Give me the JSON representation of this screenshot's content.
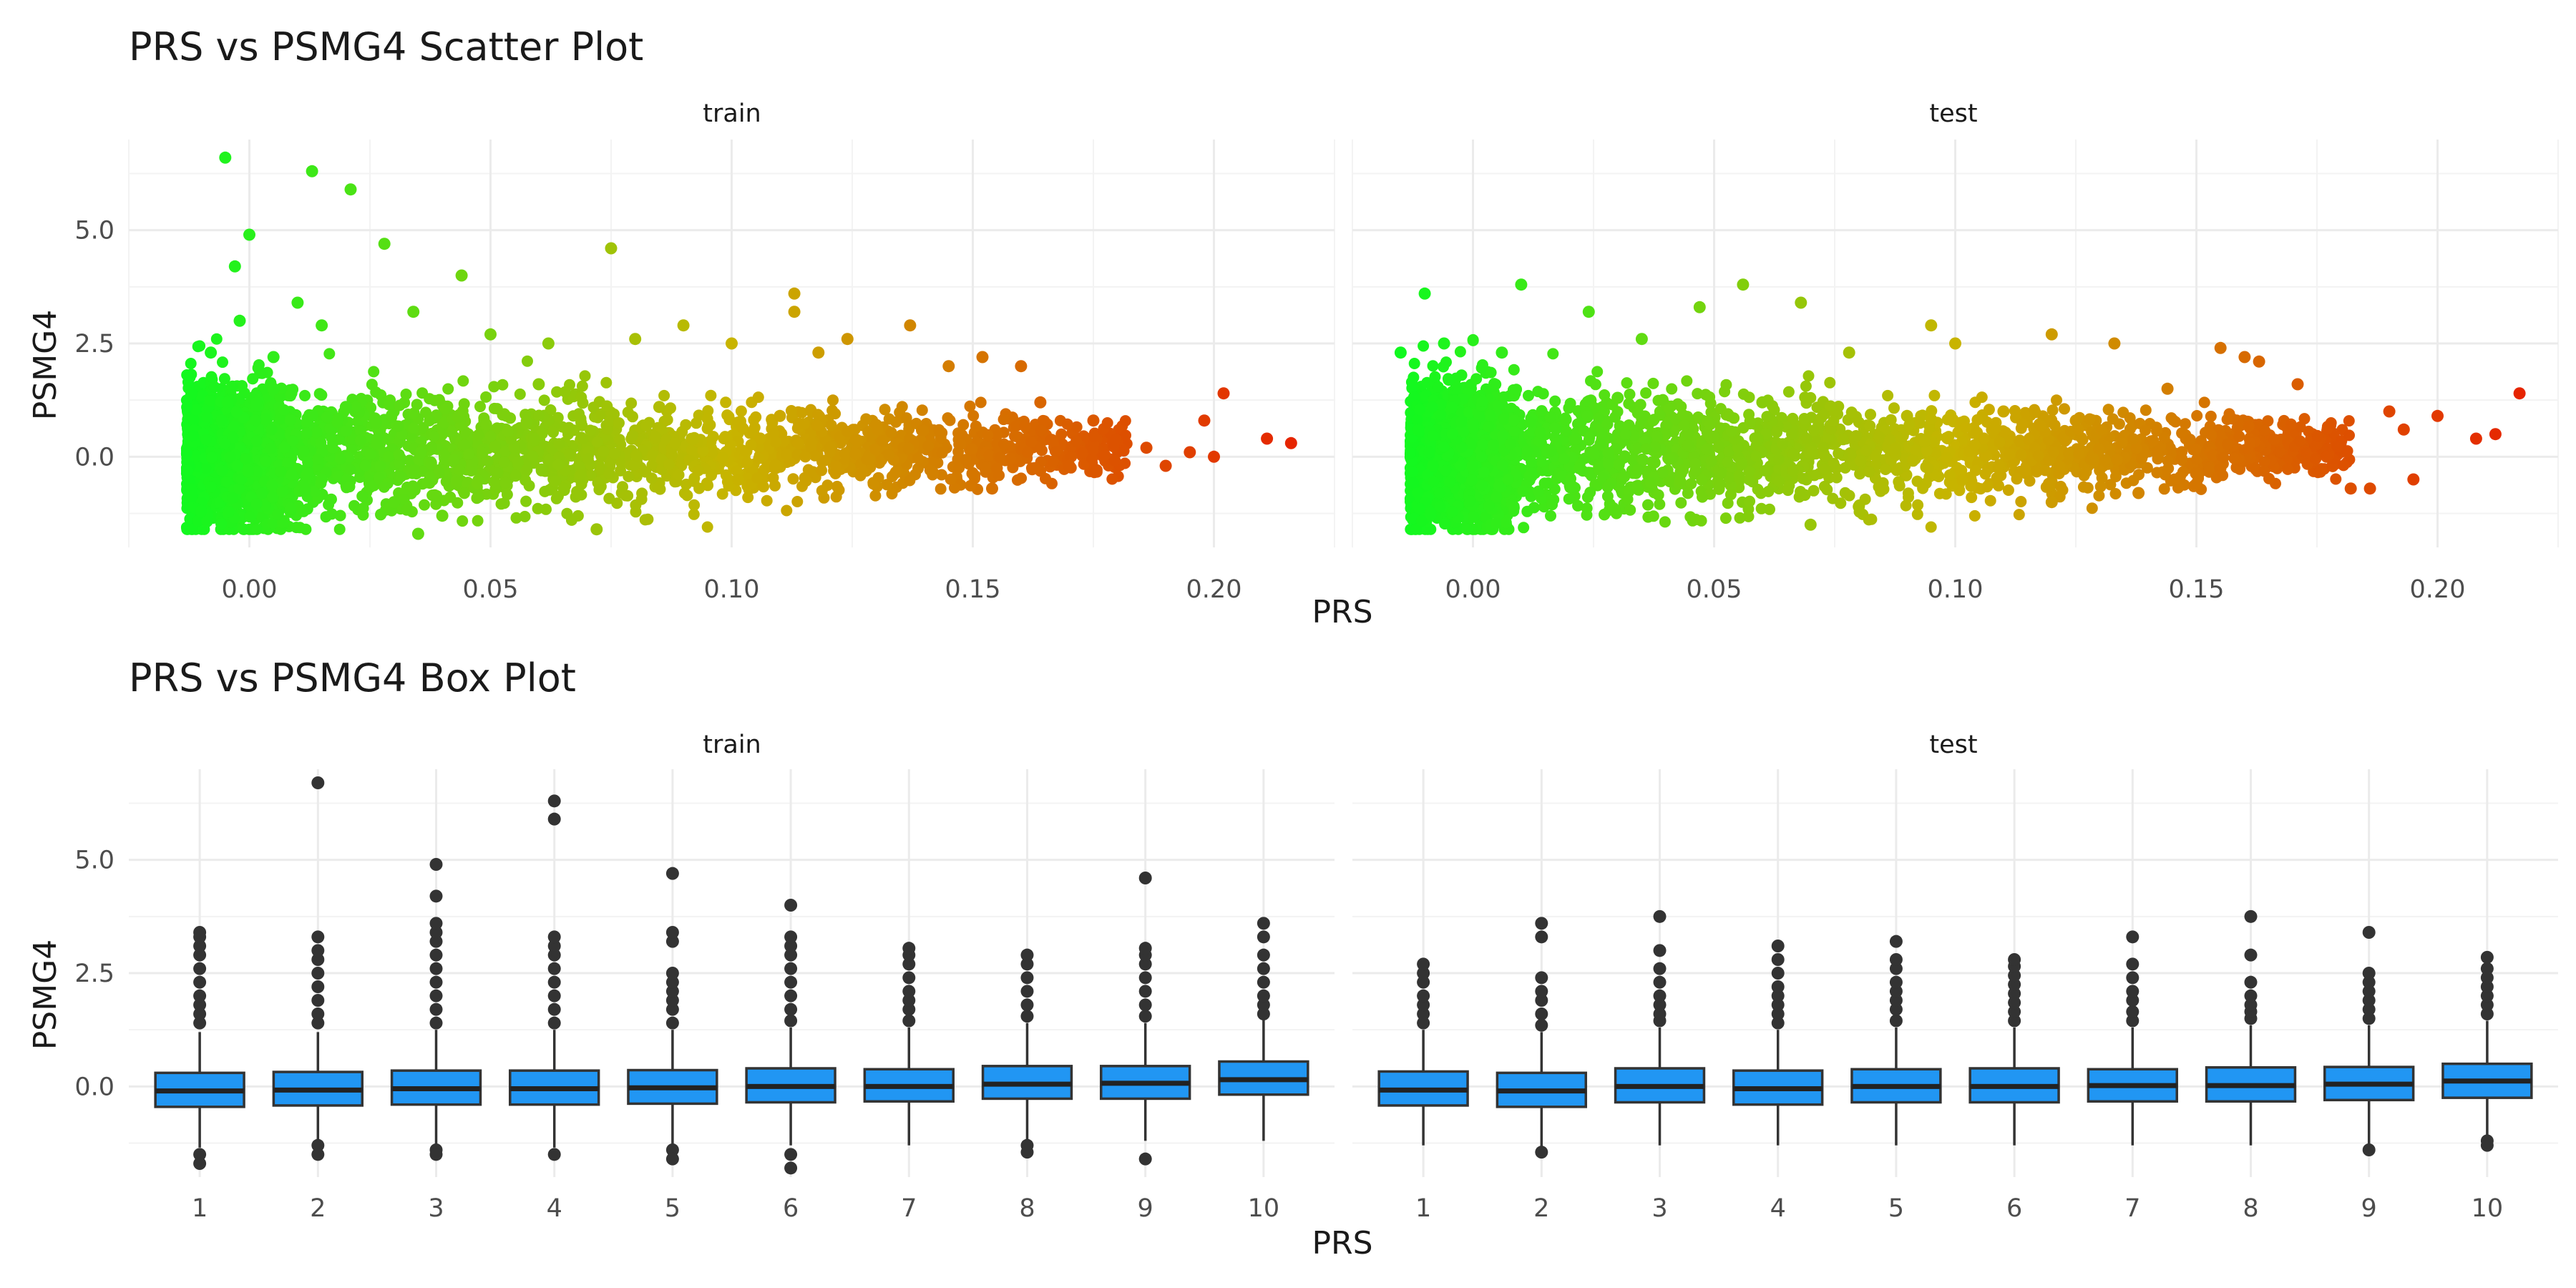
{
  "chart_data": [
    {
      "type": "scatter",
      "title": "PRS vs PSMG4 Scatter Plot",
      "xlabel": "PRS",
      "ylabel": "PSMG4",
      "xlim": [
        -0.025,
        0.225
      ],
      "ylim": [
        -2.0,
        7.0
      ],
      "xticks": [
        0.0,
        0.05,
        0.1,
        0.15,
        0.2
      ],
      "xtick_labels": [
        "0.00",
        "0.05",
        "0.10",
        "0.15",
        "0.20"
      ],
      "yticks": [
        0.0,
        2.5,
        5.0
      ],
      "ytick_labels": [
        "0.0",
        "2.5",
        "5.0"
      ],
      "color_scale": {
        "low": "#00ff22",
        "mid": "#c8b400",
        "high": "#e81a00",
        "variable": "PRS"
      },
      "grid": true,
      "facets": [
        {
          "name": "train",
          "points": [
            [
              -0.012,
              1.4
            ],
            [
              -0.01,
              -1.2
            ],
            [
              -0.008,
              2.3
            ],
            [
              -0.005,
              6.6
            ],
            [
              -0.003,
              4.2
            ],
            [
              0.0,
              4.9
            ],
            [
              -0.002,
              3.0
            ],
            [
              0.005,
              2.2
            ],
            [
              0.01,
              3.4
            ],
            [
              0.015,
              2.9
            ],
            [
              0.013,
              6.3
            ],
            [
              0.021,
              5.9
            ],
            [
              0.028,
              4.7
            ],
            [
              0.034,
              3.2
            ],
            [
              0.044,
              4.0
            ],
            [
              0.05,
              2.7
            ],
            [
              0.035,
              -1.7
            ],
            [
              0.04,
              -1.3
            ],
            [
              0.062,
              2.5
            ],
            [
              0.072,
              -1.6
            ],
            [
              0.075,
              4.6
            ],
            [
              0.08,
              2.6
            ],
            [
              0.09,
              2.9
            ],
            [
              0.1,
              2.5
            ],
            [
              0.113,
              3.6
            ],
            [
              0.113,
              3.2
            ],
            [
              0.118,
              2.3
            ],
            [
              0.124,
              2.6
            ],
            [
              0.137,
              2.9
            ],
            [
              0.145,
              2.0
            ],
            [
              0.152,
              2.2
            ],
            [
              0.16,
              2.0
            ],
            [
              0.154,
              -0.7
            ],
            [
              0.164,
              1.2
            ],
            [
              0.17,
              -0.2
            ],
            [
              0.175,
              0.8
            ],
            [
              0.186,
              0.2
            ],
            [
              0.19,
              -0.2
            ],
            [
              0.195,
              0.1
            ],
            [
              0.198,
              0.8
            ],
            [
              0.2,
              0.0
            ],
            [
              0.202,
              1.4
            ],
            [
              0.211,
              0.4
            ],
            [
              0.216,
              0.3
            ],
            [
              0.005,
              1.5
            ],
            [
              0.02,
              1.1
            ],
            [
              0.03,
              -1.0
            ],
            [
              0.06,
              1.6
            ],
            [
              0.085,
              1.1
            ],
            [
              0.11,
              0.9
            ],
            [
              0.13,
              0.7
            ]
          ]
        },
        {
          "name": "test",
          "points": [
            [
              -0.015,
              2.3
            ],
            [
              -0.01,
              3.6
            ],
            [
              -0.006,
              2.5
            ],
            [
              0.006,
              2.3
            ],
            [
              0.01,
              3.8
            ],
            [
              0.024,
              3.2
            ],
            [
              0.035,
              2.6
            ],
            [
              0.047,
              3.3
            ],
            [
              0.056,
              3.8
            ],
            [
              0.068,
              3.4
            ],
            [
              0.078,
              2.3
            ],
            [
              0.095,
              2.9
            ],
            [
              0.1,
              2.5
            ],
            [
              0.12,
              2.7
            ],
            [
              0.133,
              2.5
            ],
            [
              0.144,
              1.5
            ],
            [
              0.155,
              2.4
            ],
            [
              0.16,
              2.2
            ],
            [
              0.163,
              2.1
            ],
            [
              0.171,
              1.6
            ],
            [
              0.177,
              0.0
            ],
            [
              0.182,
              -0.7
            ],
            [
              0.186,
              -0.7
            ],
            [
              0.19,
              1.0
            ],
            [
              0.193,
              0.6
            ],
            [
              0.195,
              -0.5
            ],
            [
              0.2,
              0.9
            ],
            [
              0.208,
              0.4
            ],
            [
              0.212,
              0.5
            ],
            [
              0.217,
              1.4
            ],
            [
              0.07,
              -1.5
            ],
            [
              0.08,
              -1.1
            ],
            [
              0.12,
              -1.0
            ],
            [
              0.138,
              -0.8
            ],
            [
              0.15,
              -0.6
            ],
            [
              -0.005,
              1.7
            ],
            [
              0.03,
              1.3
            ],
            [
              0.06,
              1.2
            ],
            [
              0.09,
              0.9
            ],
            [
              0.11,
              1.0
            ],
            [
              0.125,
              0.8
            ]
          ]
        }
      ]
    },
    {
      "type": "box",
      "title": "PRS vs PSMG4 Box Plot",
      "xlabel": "PRS",
      "ylabel": "PSMG4",
      "ylim": [
        -2.0,
        7.0
      ],
      "yticks": [
        0.0,
        2.5,
        5.0
      ],
      "ytick_labels": [
        "0.0",
        "2.5",
        "5.0"
      ],
      "categories": [
        "1",
        "2",
        "3",
        "4",
        "5",
        "6",
        "7",
        "8",
        "9",
        "10"
      ],
      "box_color": "#2196f3",
      "grid": true,
      "facets": [
        {
          "name": "train",
          "boxes": [
            {
              "q1": -0.45,
              "median": -0.1,
              "q3": 0.3,
              "lower": -1.35,
              "upper": 1.2,
              "outliers": [
                1.4,
                1.6,
                1.8,
                2.0,
                2.3,
                2.6,
                2.9,
                3.1,
                3.3,
                3.4,
                -1.5,
                -1.7
              ]
            },
            {
              "q1": -0.42,
              "median": -0.08,
              "q3": 0.32,
              "lower": -1.3,
              "upper": 1.2,
              "outliers": [
                1.4,
                1.6,
                1.9,
                2.2,
                2.5,
                2.8,
                3.0,
                3.3,
                6.7,
                -1.3,
                -1.5
              ]
            },
            {
              "q1": -0.4,
              "median": -0.05,
              "q3": 0.35,
              "lower": -1.35,
              "upper": 1.25,
              "outliers": [
                1.4,
                1.7,
                2.0,
                2.3,
                2.6,
                2.9,
                3.2,
                3.4,
                3.6,
                4.2,
                4.9,
                -1.4,
                -1.5
              ]
            },
            {
              "q1": -0.4,
              "median": -0.05,
              "q3": 0.35,
              "lower": -1.35,
              "upper": 1.25,
              "outliers": [
                1.4,
                1.7,
                2.0,
                2.3,
                2.6,
                2.9,
                3.1,
                3.3,
                5.9,
                6.3,
                -1.5
              ]
            },
            {
              "q1": -0.38,
              "median": -0.03,
              "q3": 0.36,
              "lower": -1.3,
              "upper": 1.25,
              "outliers": [
                1.4,
                1.7,
                1.9,
                2.1,
                2.3,
                2.5,
                3.2,
                3.4,
                4.7,
                -1.4,
                -1.6
              ]
            },
            {
              "q1": -0.35,
              "median": 0.0,
              "q3": 0.4,
              "lower": -1.3,
              "upper": 1.3,
              "outliers": [
                1.45,
                1.7,
                2.0,
                2.3,
                2.6,
                2.9,
                3.1,
                3.3,
                4.0,
                -1.5,
                -1.8
              ]
            },
            {
              "q1": -0.33,
              "median": 0.0,
              "q3": 0.38,
              "lower": -1.3,
              "upper": 1.3,
              "outliers": [
                1.45,
                1.7,
                1.9,
                2.1,
                2.4,
                2.7,
                2.9,
                3.05
              ]
            },
            {
              "q1": -0.27,
              "median": 0.05,
              "q3": 0.45,
              "lower": -1.2,
              "upper": 1.4,
              "outliers": [
                1.55,
                1.8,
                2.1,
                2.4,
                2.7,
                2.9,
                -1.3,
                -1.45
              ]
            },
            {
              "q1": -0.27,
              "median": 0.07,
              "q3": 0.45,
              "lower": -1.2,
              "upper": 1.4,
              "outliers": [
                1.55,
                1.8,
                2.1,
                2.4,
                2.7,
                2.9,
                3.05,
                4.6,
                -1.6
              ]
            },
            {
              "q1": -0.18,
              "median": 0.15,
              "q3": 0.55,
              "lower": -1.2,
              "upper": 1.5,
              "outliers": [
                1.6,
                1.8,
                2.0,
                2.3,
                2.6,
                2.9,
                3.3,
                3.6
              ]
            }
          ]
        },
        {
          "name": "test",
          "boxes": [
            {
              "q1": -0.42,
              "median": -0.08,
              "q3": 0.33,
              "lower": -1.3,
              "upper": 1.25,
              "outliers": [
                1.4,
                1.6,
                1.8,
                2.0,
                2.3,
                2.5,
                2.7
              ]
            },
            {
              "q1": -0.45,
              "median": -0.1,
              "q3": 0.3,
              "lower": -1.35,
              "upper": 1.2,
              "outliers": [
                1.35,
                1.6,
                1.9,
                2.1,
                2.4,
                3.3,
                3.6,
                -1.45
              ]
            },
            {
              "q1": -0.35,
              "median": 0.0,
              "q3": 0.4,
              "lower": -1.3,
              "upper": 1.3,
              "outliers": [
                1.45,
                1.6,
                1.8,
                2.0,
                2.3,
                2.6,
                3.0,
                3.75
              ]
            },
            {
              "q1": -0.4,
              "median": -0.05,
              "q3": 0.35,
              "lower": -1.3,
              "upper": 1.25,
              "outliers": [
                1.4,
                1.6,
                1.8,
                2.0,
                2.2,
                2.5,
                2.8,
                3.1
              ]
            },
            {
              "q1": -0.35,
              "median": 0.0,
              "q3": 0.38,
              "lower": -1.3,
              "upper": 1.3,
              "outliers": [
                1.45,
                1.7,
                1.9,
                2.1,
                2.3,
                2.6,
                2.8,
                3.2
              ]
            },
            {
              "q1": -0.35,
              "median": 0.0,
              "q3": 0.4,
              "lower": -1.3,
              "upper": 1.3,
              "outliers": [
                1.45,
                1.65,
                1.85,
                2.05,
                2.25,
                2.45,
                2.65,
                2.8
              ]
            },
            {
              "q1": -0.33,
              "median": 0.02,
              "q3": 0.38,
              "lower": -1.3,
              "upper": 1.3,
              "outliers": [
                1.45,
                1.65,
                1.9,
                2.1,
                2.4,
                2.7,
                3.3
              ]
            },
            {
              "q1": -0.33,
              "median": 0.02,
              "q3": 0.42,
              "lower": -1.3,
              "upper": 1.35,
              "outliers": [
                1.5,
                1.65,
                1.8,
                2.0,
                2.3,
                2.9,
                3.75
              ]
            },
            {
              "q1": -0.3,
              "median": 0.05,
              "q3": 0.43,
              "lower": -1.35,
              "upper": 1.35,
              "outliers": [
                1.5,
                1.7,
                1.9,
                2.1,
                2.3,
                2.5,
                3.4,
                -1.4
              ]
            },
            {
              "q1": -0.25,
              "median": 0.12,
              "q3": 0.5,
              "lower": -1.15,
              "upper": 1.45,
              "outliers": [
                1.6,
                1.8,
                2.0,
                2.2,
                2.4,
                2.6,
                2.85,
                -1.2,
                -1.3
              ]
            }
          ]
        }
      ]
    }
  ]
}
